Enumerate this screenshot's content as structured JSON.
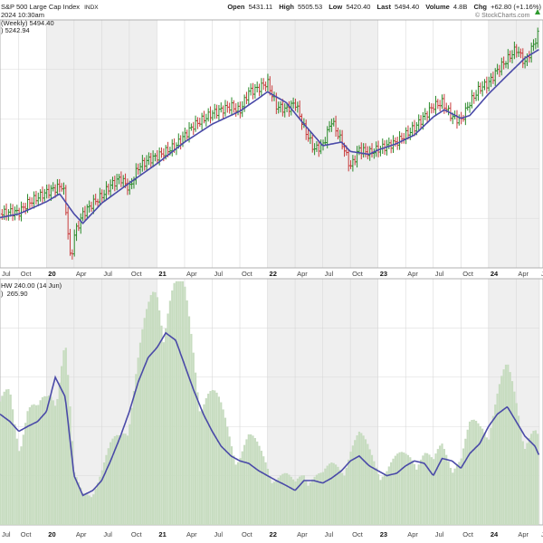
{
  "header": {
    "title": "S&P 500 Large Cap Index",
    "exchange": "INDX",
    "timestamp": "2024 10:30am",
    "quote": [
      {
        "label": "Open",
        "value": "5431.11"
      },
      {
        "label": "High",
        "value": "5505.53"
      },
      {
        "label": "Low",
        "value": "5420.40"
      },
      {
        "label": "Last",
        "value": "5494.40"
      },
      {
        "label": "Volume",
        "value": "4.8B"
      },
      {
        "label": "Chg",
        "value": "+62.80 (+1.16%)"
      }
    ],
    "price_legend": "(Weekly) 5494.40",
    "ma_legend": ") 5242.94",
    "volume_legend": "HW 240.00 (14 Jun)",
    "volume_ma_legend": "265.90",
    "watermark": "© StockCharts.com",
    "up_arrow_color": "#2e9a2e"
  },
  "colors": {
    "up_bar": "#2a8a2a",
    "down_bar": "#c83c3c",
    "ma_line": "#4a4aa8",
    "volume_bar": "#c7dcc0",
    "shade": "#efefef",
    "grid": "#d8d8d8"
  },
  "chart_data": [
    {
      "type": "line",
      "panel": "price",
      "chart_style": "weekly OHLC bars with moving average",
      "x_range": [
        2019.58,
        2024.46
      ],
      "ylim": [
        2200,
        5650
      ],
      "grid": true,
      "x_ticks": [
        {
          "x": 2019.58,
          "label": "Jul"
        },
        {
          "x": 2019.75,
          "label": "Oct"
        },
        {
          "x": 2020.0,
          "label": "20",
          "year": true
        },
        {
          "x": 2020.25,
          "label": "Apr"
        },
        {
          "x": 2020.5,
          "label": "Jul"
        },
        {
          "x": 2020.75,
          "label": "Oct"
        },
        {
          "x": 2021.0,
          "label": "21",
          "year": true
        },
        {
          "x": 2021.25,
          "label": "Apr"
        },
        {
          "x": 2021.5,
          "label": "Jul"
        },
        {
          "x": 2021.75,
          "label": "Oct"
        },
        {
          "x": 2022.0,
          "label": "22",
          "year": true
        },
        {
          "x": 2022.25,
          "label": "Apr"
        },
        {
          "x": 2022.5,
          "label": "Jul"
        },
        {
          "x": 2022.75,
          "label": "Oct"
        },
        {
          "x": 2023.0,
          "label": "23",
          "year": true
        },
        {
          "x": 2023.25,
          "label": "Apr"
        },
        {
          "x": 2023.5,
          "label": "Jul"
        },
        {
          "x": 2023.75,
          "label": "Oct"
        },
        {
          "x": 2024.0,
          "label": "24",
          "year": true
        },
        {
          "x": 2024.25,
          "label": "Apr"
        },
        {
          "x": 2024.46,
          "label": "Ju"
        }
      ],
      "series": [
        {
          "name": "S&P 500 Large Cap Index",
          "x": [
            2019.58,
            2019.67,
            2019.75,
            2019.83,
            2019.92,
            2020.0,
            2020.1,
            2020.15,
            2020.19,
            2020.22,
            2020.25,
            2020.33,
            2020.42,
            2020.5,
            2020.58,
            2020.67,
            2020.75,
            2020.83,
            2020.92,
            2021.0,
            2021.17,
            2021.33,
            2021.5,
            2021.67,
            2021.75,
            2021.83,
            2021.92,
            2022.0,
            2022.08,
            2022.17,
            2022.25,
            2022.33,
            2022.42,
            2022.5,
            2022.58,
            2022.67,
            2022.75,
            2022.83,
            2022.92,
            2023.0,
            2023.17,
            2023.33,
            2023.5,
            2023.58,
            2023.67,
            2023.75,
            2023.83,
            2023.92,
            2024.0,
            2024.08,
            2024.17,
            2024.25,
            2024.33,
            2024.42,
            2024.46
          ],
          "values": [
            2950,
            2980,
            2970,
            3100,
            3180,
            3250,
            3320,
            3350,
            2800,
            2250,
            2650,
            2950,
            3100,
            3200,
            3350,
            3450,
            3300,
            3600,
            3700,
            3750,
            3900,
            4180,
            4350,
            4450,
            4380,
            4650,
            4700,
            4780,
            4450,
            4400,
            4500,
            4150,
            3850,
            3900,
            4250,
            3950,
            3600,
            3850,
            3800,
            3850,
            3950,
            4150,
            4450,
            4500,
            4300,
            4250,
            4500,
            4700,
            4770,
            4950,
            5100,
            5250,
            5050,
            5350,
            5494
          ]
        },
        {
          "name": "Moving Average",
          "x": [
            2019.58,
            2019.75,
            2020.0,
            2020.12,
            2020.25,
            2020.33,
            2020.5,
            2020.75,
            2021.0,
            2021.25,
            2021.5,
            2021.75,
            2021.92,
            2022.0,
            2022.17,
            2022.33,
            2022.5,
            2022.67,
            2022.75,
            2022.92,
            2023.0,
            2023.17,
            2023.33,
            2023.5,
            2023.6,
            2023.75,
            2023.83,
            2024.0,
            2024.17,
            2024.25,
            2024.33,
            2024.46
          ],
          "values": [
            2900,
            2950,
            3120,
            3230,
            2950,
            2820,
            3100,
            3380,
            3650,
            3950,
            4200,
            4380,
            4560,
            4650,
            4500,
            4200,
            3900,
            3950,
            3820,
            3780,
            3840,
            3930,
            4050,
            4300,
            4400,
            4280,
            4320,
            4620,
            4880,
            5000,
            5120,
            5242
          ]
        }
      ]
    },
    {
      "type": "bar",
      "panel": "volume",
      "chart_style": "weekly volume bars with moving average",
      "x_range": [
        2019.58,
        2024.46
      ],
      "grid": true,
      "series": [
        {
          "name": "Volume",
          "x": [
            2019.58,
            2019.67,
            2019.75,
            2019.83,
            2019.92,
            2020.0,
            2020.08,
            2020.17,
            2020.25,
            2020.33,
            2020.42,
            2020.5,
            2020.58,
            2020.67,
            2020.75,
            2020.83,
            2020.92,
            2021.0,
            2021.08,
            2021.17,
            2021.25,
            2021.33,
            2021.42,
            2021.5,
            2021.58,
            2021.67,
            2021.75,
            2021.83,
            2021.92,
            2022.0,
            2022.08,
            2022.17,
            2022.25,
            2022.33,
            2022.42,
            2022.5,
            2022.58,
            2022.67,
            2022.75,
            2022.83,
            2022.92,
            2023.0,
            2023.08,
            2023.17,
            2023.25,
            2023.33,
            2023.42,
            2023.5,
            2023.58,
            2023.67,
            2023.75,
            2023.83,
            2023.92,
            2024.0,
            2024.08,
            2024.17,
            2024.25,
            2024.33,
            2024.42,
            2024.46
          ],
          "values": [
            0.42,
            0.5,
            0.38,
            0.45,
            0.4,
            0.48,
            0.62,
            0.7,
            0.18,
            0.12,
            0.15,
            0.2,
            0.28,
            0.35,
            0.5,
            0.62,
            0.75,
            0.92,
            0.98,
            0.88,
            0.82,
            0.7,
            0.55,
            0.48,
            0.42,
            0.35,
            0.3,
            0.32,
            0.28,
            0.25,
            0.2,
            0.18,
            0.15,
            0.22,
            0.2,
            0.18,
            0.22,
            0.25,
            0.3,
            0.32,
            0.28,
            0.25,
            0.22,
            0.24,
            0.26,
            0.3,
            0.28,
            0.22,
            0.3,
            0.28,
            0.25,
            0.35,
            0.38,
            0.45,
            0.5,
            0.55,
            0.48,
            0.4,
            0.35,
            0.3
          ]
        },
        {
          "name": "Volume MA",
          "x": [
            2019.58,
            2019.67,
            2019.75,
            2019.83,
            2019.92,
            2020.0,
            2020.08,
            2020.17,
            2020.25,
            2020.33,
            2020.42,
            2020.5,
            2020.58,
            2020.67,
            2020.75,
            2020.83,
            2020.92,
            2021.0,
            2021.08,
            2021.17,
            2021.25,
            2021.33,
            2021.42,
            2021.5,
            2021.58,
            2021.67,
            2021.75,
            2021.83,
            2021.92,
            2022.0,
            2022.08,
            2022.17,
            2022.25,
            2022.33,
            2022.42,
            2022.5,
            2022.58,
            2022.67,
            2022.75,
            2022.83,
            2022.92,
            2023.0,
            2023.08,
            2023.17,
            2023.25,
            2023.33,
            2023.42,
            2023.5,
            2023.58,
            2023.67,
            2023.75,
            2023.83,
            2023.92,
            2024.0,
            2024.08,
            2024.17,
            2024.25,
            2024.33,
            2024.42,
            2024.46
          ],
          "values": [
            0.45,
            0.42,
            0.38,
            0.4,
            0.42,
            0.46,
            0.6,
            0.52,
            0.2,
            0.12,
            0.14,
            0.18,
            0.26,
            0.36,
            0.46,
            0.58,
            0.68,
            0.72,
            0.78,
            0.75,
            0.65,
            0.55,
            0.45,
            0.38,
            0.32,
            0.28,
            0.26,
            0.25,
            0.22,
            0.2,
            0.18,
            0.16,
            0.14,
            0.18,
            0.18,
            0.17,
            0.19,
            0.22,
            0.26,
            0.28,
            0.24,
            0.22,
            0.2,
            0.21,
            0.24,
            0.26,
            0.25,
            0.2,
            0.27,
            0.26,
            0.23,
            0.29,
            0.33,
            0.4,
            0.45,
            0.48,
            0.42,
            0.36,
            0.32,
            0.28
          ]
        }
      ]
    }
  ]
}
